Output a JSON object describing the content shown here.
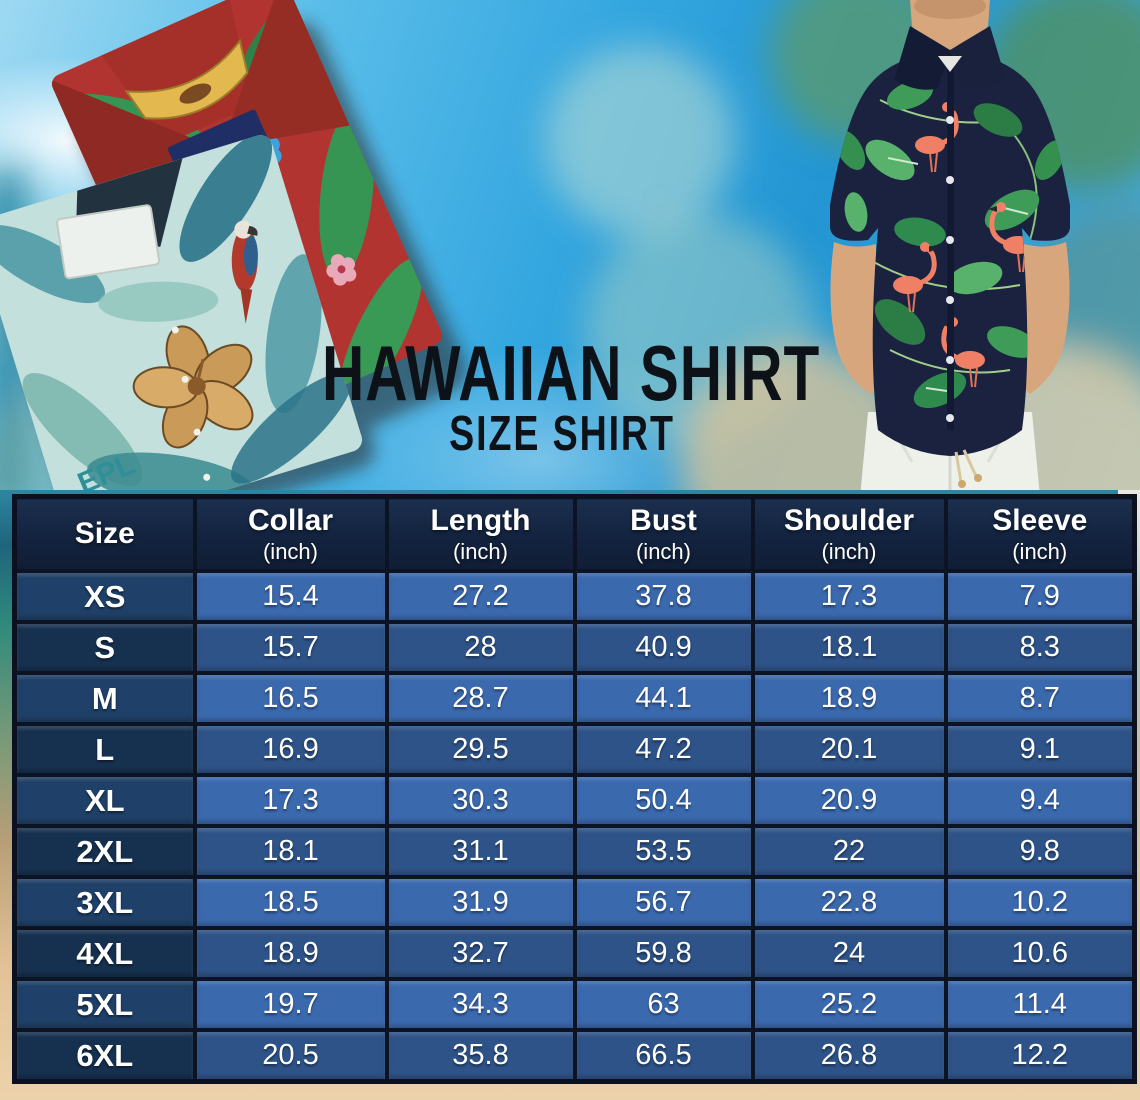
{
  "title": "HAWAIIAN SHIRT",
  "subtitle": "SIZE SHIRT",
  "table": {
    "columns": [
      {
        "label": "Size",
        "sub": ""
      },
      {
        "label": "Collar",
        "sub": "(inch)"
      },
      {
        "label": "Length",
        "sub": "(inch)"
      },
      {
        "label": "Bust",
        "sub": "(inch)"
      },
      {
        "label": "Shoulder",
        "sub": "(inch)"
      },
      {
        "label": "Sleeve",
        "sub": "(inch)"
      }
    ],
    "rows": [
      {
        "size": "XS",
        "values": [
          "15.4",
          "27.2",
          "37.8",
          "17.3",
          "7.9"
        ]
      },
      {
        "size": "S",
        "values": [
          "15.7",
          "28",
          "40.9",
          "18.1",
          "8.3"
        ]
      },
      {
        "size": "M",
        "values": [
          "16.5",
          "28.7",
          "44.1",
          "18.9",
          "8.7"
        ]
      },
      {
        "size": "L",
        "values": [
          "16.9",
          "29.5",
          "47.2",
          "20.1",
          "9.1"
        ]
      },
      {
        "size": "XL",
        "values": [
          "17.3",
          "30.3",
          "50.4",
          "20.9",
          "9.4"
        ]
      },
      {
        "size": "2XL",
        "values": [
          "18.1",
          "31.1",
          "53.5",
          "22",
          "9.8"
        ]
      },
      {
        "size": "3XL",
        "values": [
          "18.5",
          "31.9",
          "56.7",
          "22.8",
          "10.2"
        ]
      },
      {
        "size": "4XL",
        "values": [
          "18.9",
          "32.7",
          "59.8",
          "24",
          "10.6"
        ]
      },
      {
        "size": "5XL",
        "values": [
          "19.7",
          "34.3",
          "63",
          "25.2",
          "11.4"
        ]
      },
      {
        "size": "6XL",
        "values": [
          "20.5",
          "35.8",
          "66.5",
          "26.8",
          "12.2"
        ]
      }
    ]
  },
  "chart_data": {
    "type": "table",
    "title": "HAWAIIAN SHIRT SIZE SHIRT",
    "columns": [
      "Size",
      "Collar (inch)",
      "Length (inch)",
      "Bust (inch)",
      "Shoulder (inch)",
      "Sleeve (inch)"
    ],
    "rows": [
      [
        "XS",
        15.4,
        27.2,
        37.8,
        17.3,
        7.9
      ],
      [
        "S",
        15.7,
        28,
        40.9,
        18.1,
        8.3
      ],
      [
        "M",
        16.5,
        28.7,
        44.1,
        18.9,
        8.7
      ],
      [
        "L",
        16.9,
        29.5,
        47.2,
        20.1,
        9.1
      ],
      [
        "XL",
        17.3,
        30.3,
        50.4,
        20.9,
        9.4
      ],
      [
        "2XL",
        18.1,
        31.1,
        53.5,
        22,
        9.8
      ],
      [
        "3XL",
        18.5,
        31.9,
        56.7,
        22.8,
        10.2
      ],
      [
        "4XL",
        18.9,
        32.7,
        59.8,
        24,
        10.6
      ],
      [
        "5XL",
        19.7,
        34.3,
        63,
        25.2,
        11.4
      ],
      [
        "6XL",
        20.5,
        35.8,
        66.5,
        26.8,
        12.2
      ]
    ]
  },
  "colors": {
    "header_bg": "#13233f",
    "row_light": "#3b69ae",
    "row_dark": "#2e5388",
    "size_col_light": "#1f4068",
    "size_col_dark": "#16314f",
    "grid": "#0c1322",
    "title_text": "#0d1218",
    "sand": "#ecd2ab",
    "sky": "#35a7e0"
  }
}
